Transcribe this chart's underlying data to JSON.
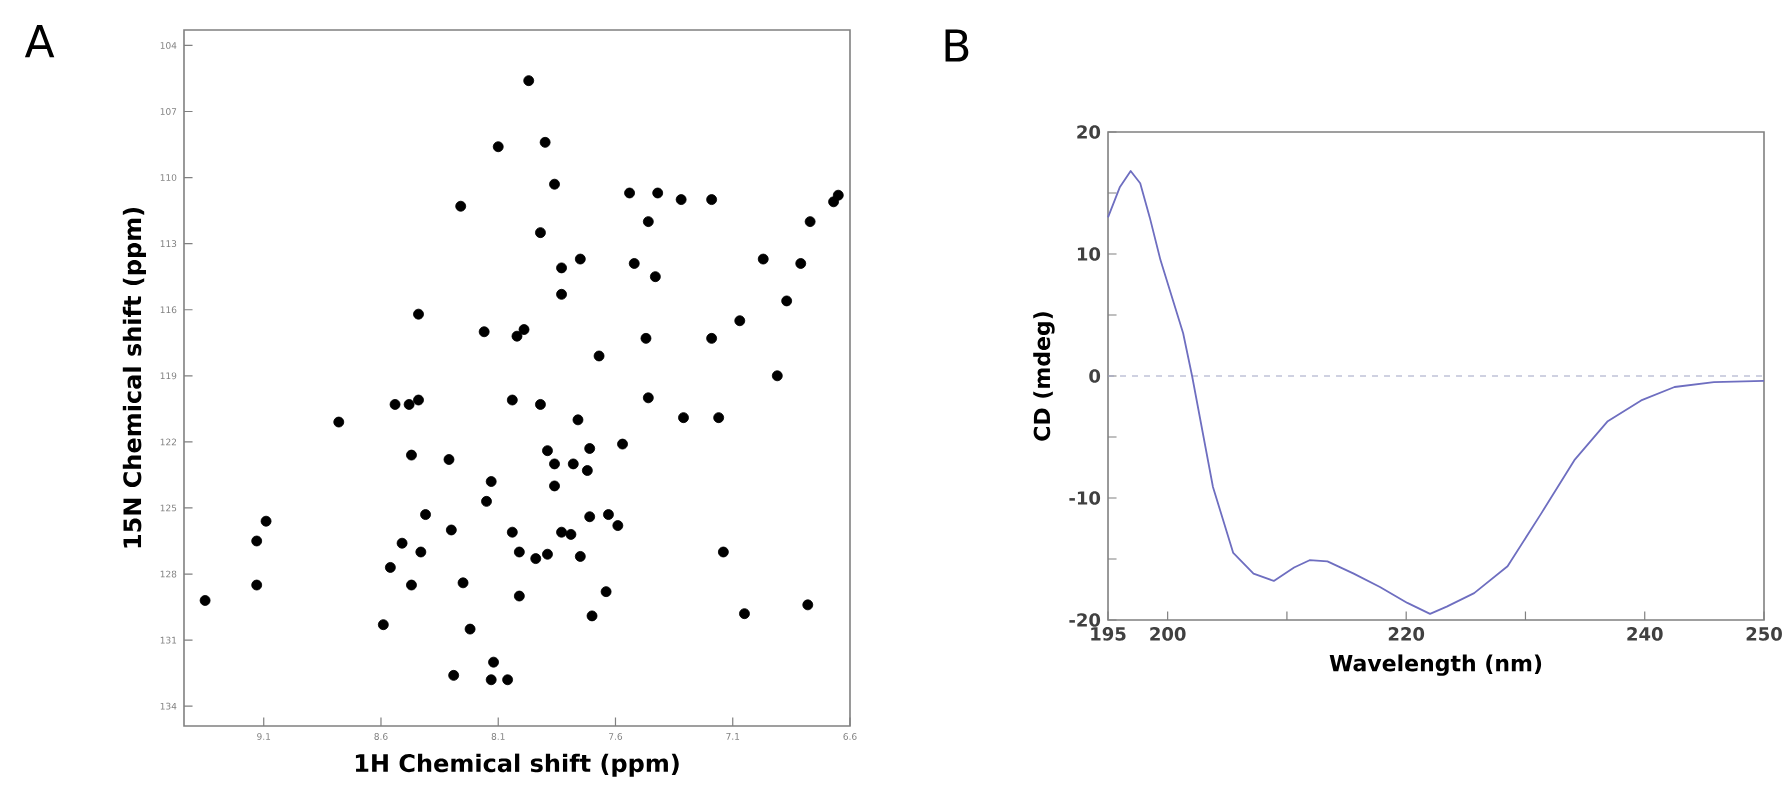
{
  "chart_data": [
    {
      "type": "scatter",
      "title": "A",
      "xlabel": "1H Chemical shift (ppm)",
      "ylabel": "15N Chemical shift (ppm)",
      "xlim": [
        9.44,
        6.6
      ],
      "ylim": [
        134.9,
        103.3
      ],
      "xticks": [
        9.1,
        8.6,
        8.1,
        7.6,
        7.1,
        6.6
      ],
      "yticks": [
        104,
        107,
        110,
        113,
        116,
        119,
        122,
        125,
        128,
        131,
        134
      ],
      "marker": "circle",
      "color": "#000000",
      "x": [
        7.97,
        8.1,
        7.9,
        7.86,
        8.26,
        7.54,
        7.42,
        7.32,
        7.19,
        7.46,
        7.92,
        7.75,
        7.52,
        7.43,
        7.83,
        7.83,
        6.97,
        6.81,
        6.77,
        6.67,
        6.65,
        6.87,
        8.44,
        8.16,
        8.02,
        7.99,
        7.67,
        7.47,
        7.19,
        7.07,
        6.91,
        8.54,
        8.48,
        8.44,
        8.04,
        7.92,
        7.46,
        7.31,
        7.16,
        8.78,
        7.76,
        7.57,
        8.47,
        8.31,
        7.89,
        7.86,
        7.78,
        7.71,
        7.72,
        7.86,
        8.13,
        8.15,
        9.09,
        9.13,
        8.41,
        8.3,
        8.04,
        7.83,
        7.79,
        7.71,
        7.63,
        7.59,
        8.51,
        8.43,
        8.01,
        7.94,
        7.89,
        7.75,
        7.14,
        8.56,
        8.47,
        8.25,
        8.01,
        7.64,
        9.13,
        9.35,
        6.78,
        8.59,
        7.7,
        7.05,
        8.22,
        8.29,
        8.13,
        8.06,
        8.12
      ],
      "values": [
        105.6,
        108.6,
        108.4,
        110.3,
        111.3,
        110.7,
        110.7,
        111.0,
        111.0,
        112.0,
        112.5,
        113.7,
        113.9,
        114.5,
        114.1,
        115.3,
        113.7,
        113.9,
        112.0,
        111.1,
        110.8,
        115.6,
        116.2,
        117.0,
        117.2,
        116.9,
        118.1,
        117.3,
        117.3,
        116.5,
        119.0,
        120.3,
        120.3,
        120.1,
        120.1,
        120.3,
        120.0,
        120.9,
        120.9,
        121.1,
        121.0,
        122.1,
        122.6,
        122.8,
        122.4,
        123.0,
        123.0,
        122.3,
        123.3,
        124.0,
        123.8,
        124.7,
        125.6,
        126.5,
        125.3,
        126.0,
        126.1,
        126.1,
        126.2,
        125.4,
        125.3,
        125.8,
        126.6,
        127.0,
        127.0,
        127.3,
        127.1,
        127.2,
        127.0,
        127.7,
        128.5,
        128.4,
        129.0,
        128.8,
        128.5,
        129.2,
        129.4,
        130.3,
        129.9,
        129.8,
        130.5,
        132.6,
        132.8,
        132.8,
        132.0
      ]
    },
    {
      "type": "line",
      "title": "B",
      "xlabel": "Wavelength (nm)",
      "ylabel": "CD (mdeg)",
      "xlim": [
        195,
        250
      ],
      "ylim": [
        -20,
        20
      ],
      "xticks": [
        195,
        200,
        {
          "value": 210,
          "label": null
        },
        220,
        {
          "value": 230,
          "label": null
        },
        240,
        250
      ],
      "yticks": [
        -20,
        {
          "value": -15,
          "label": null
        },
        -10,
        {
          "value": -5,
          "label": null
        },
        0,
        {
          "value": 5,
          "label": null
        },
        10,
        {
          "value": 15,
          "label": null
        },
        20
      ],
      "color": "#6e6ec0",
      "ref_lines": [
        {
          "axis": "y",
          "value": 0,
          "color": "#a0a4c4",
          "line_style": "dashed"
        }
      ],
      "x": [
        195.0,
        196.0,
        196.9,
        197.7,
        198.5,
        199.4,
        201.3,
        202.05,
        203.8,
        205.5,
        207.2,
        208.9,
        210.6,
        211.9,
        213.4,
        215.6,
        217.8,
        220.1,
        222.0,
        223.4,
        225.7,
        228.5,
        231.3,
        234.1,
        236.9,
        239.7,
        242.5,
        245.8,
        250.0
      ],
      "values": [
        13.0,
        15.5,
        16.8,
        15.8,
        13.0,
        9.5,
        3.5,
        0.0,
        -9.1,
        -14.5,
        -16.2,
        -16.8,
        -15.7,
        -15.1,
        -15.2,
        -16.2,
        -17.3,
        -18.6,
        -19.5,
        -18.9,
        -17.8,
        -15.6,
        -11.3,
        -6.9,
        -3.7,
        -2.0,
        -0.9,
        -0.5,
        -0.4
      ]
    }
  ]
}
